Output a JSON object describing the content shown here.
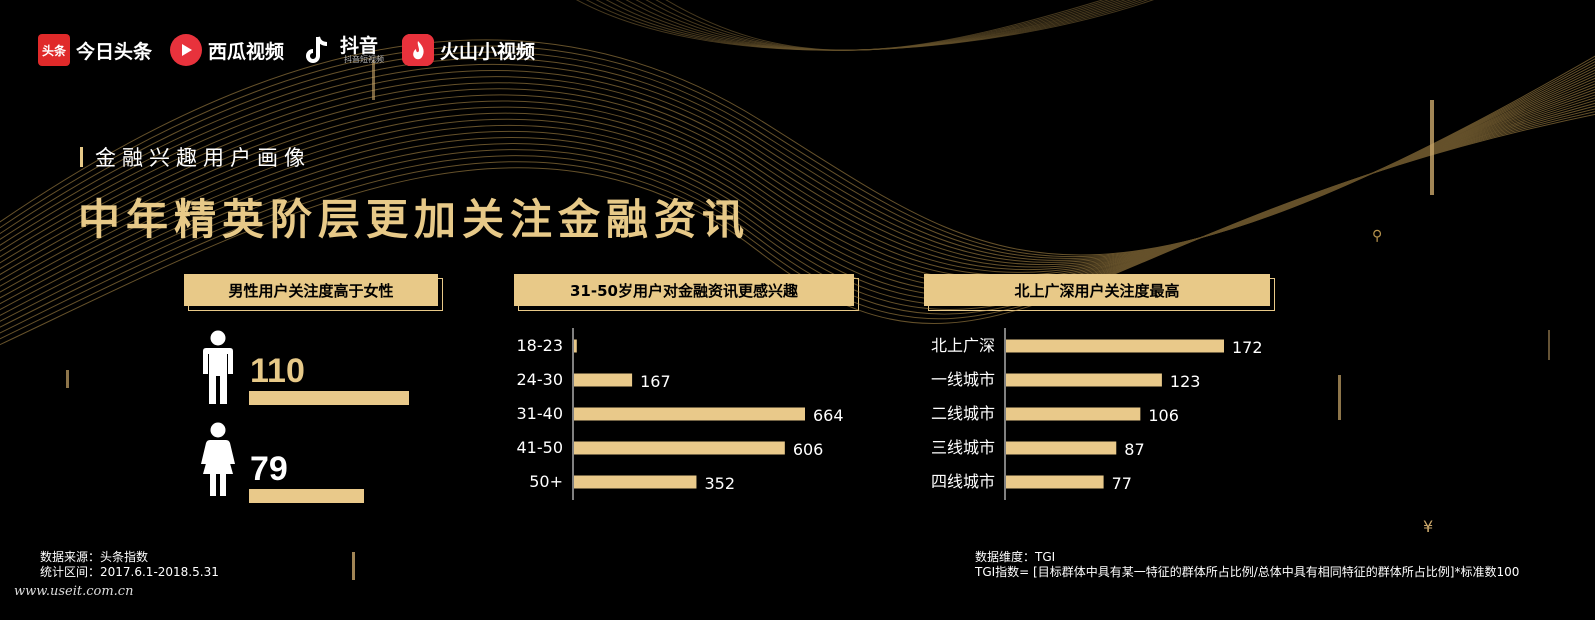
{
  "brands": {
    "toutiao": {
      "mark": "头条",
      "name": "今日头条"
    },
    "xigua": {
      "name": "西瓜视频"
    },
    "douyin": {
      "name": "抖音",
      "sub": "抖音短视频"
    },
    "huoshan": {
      "name": "火山小视频"
    }
  },
  "section_label": "金融兴趣用户画像",
  "headline": "中年精英阶层更加关注金融资讯",
  "colors": {
    "gold": "#e8c988",
    "bar": "#e9c98a",
    "background": "#000000"
  },
  "chart_data": [
    {
      "type": "bar",
      "title": "男性用户关注度高于女性",
      "categories": [
        "男",
        "女"
      ],
      "values": [
        110,
        79
      ],
      "icons": [
        "male-icon",
        "female-icon"
      ]
    },
    {
      "type": "bar",
      "orientation": "horizontal",
      "title": "31-50岁用户对金融资讯更感兴趣",
      "categories": [
        "18-23",
        "24-30",
        "31-40",
        "41-50",
        "50+"
      ],
      "values": [
        8,
        167,
        664,
        606,
        352
      ],
      "labels": [
        "",
        "167",
        "664",
        "606",
        "352"
      ]
    },
    {
      "type": "bar",
      "orientation": "horizontal",
      "title": "北上广深用户关注度最高",
      "categories": [
        "北上广深",
        "一线城市",
        "二线城市",
        "三线城市",
        "四线城市"
      ],
      "values": [
        172,
        123,
        106,
        87,
        77
      ],
      "labels": [
        "172",
        "123",
        "106",
        "87",
        "77"
      ]
    }
  ],
  "footer_left": {
    "line1": "数据来源：头条指数",
    "line2": "统计区间：2017.6.1-2018.5.31"
  },
  "footer_right": {
    "line1": "数据维度：TGI",
    "line2": "TGI指数= [目标群体中具有某一特征的群体所占比例/总体中具有相同特征的群体所占比例]*标准数100"
  },
  "watermark": "www.useit.com.cn"
}
